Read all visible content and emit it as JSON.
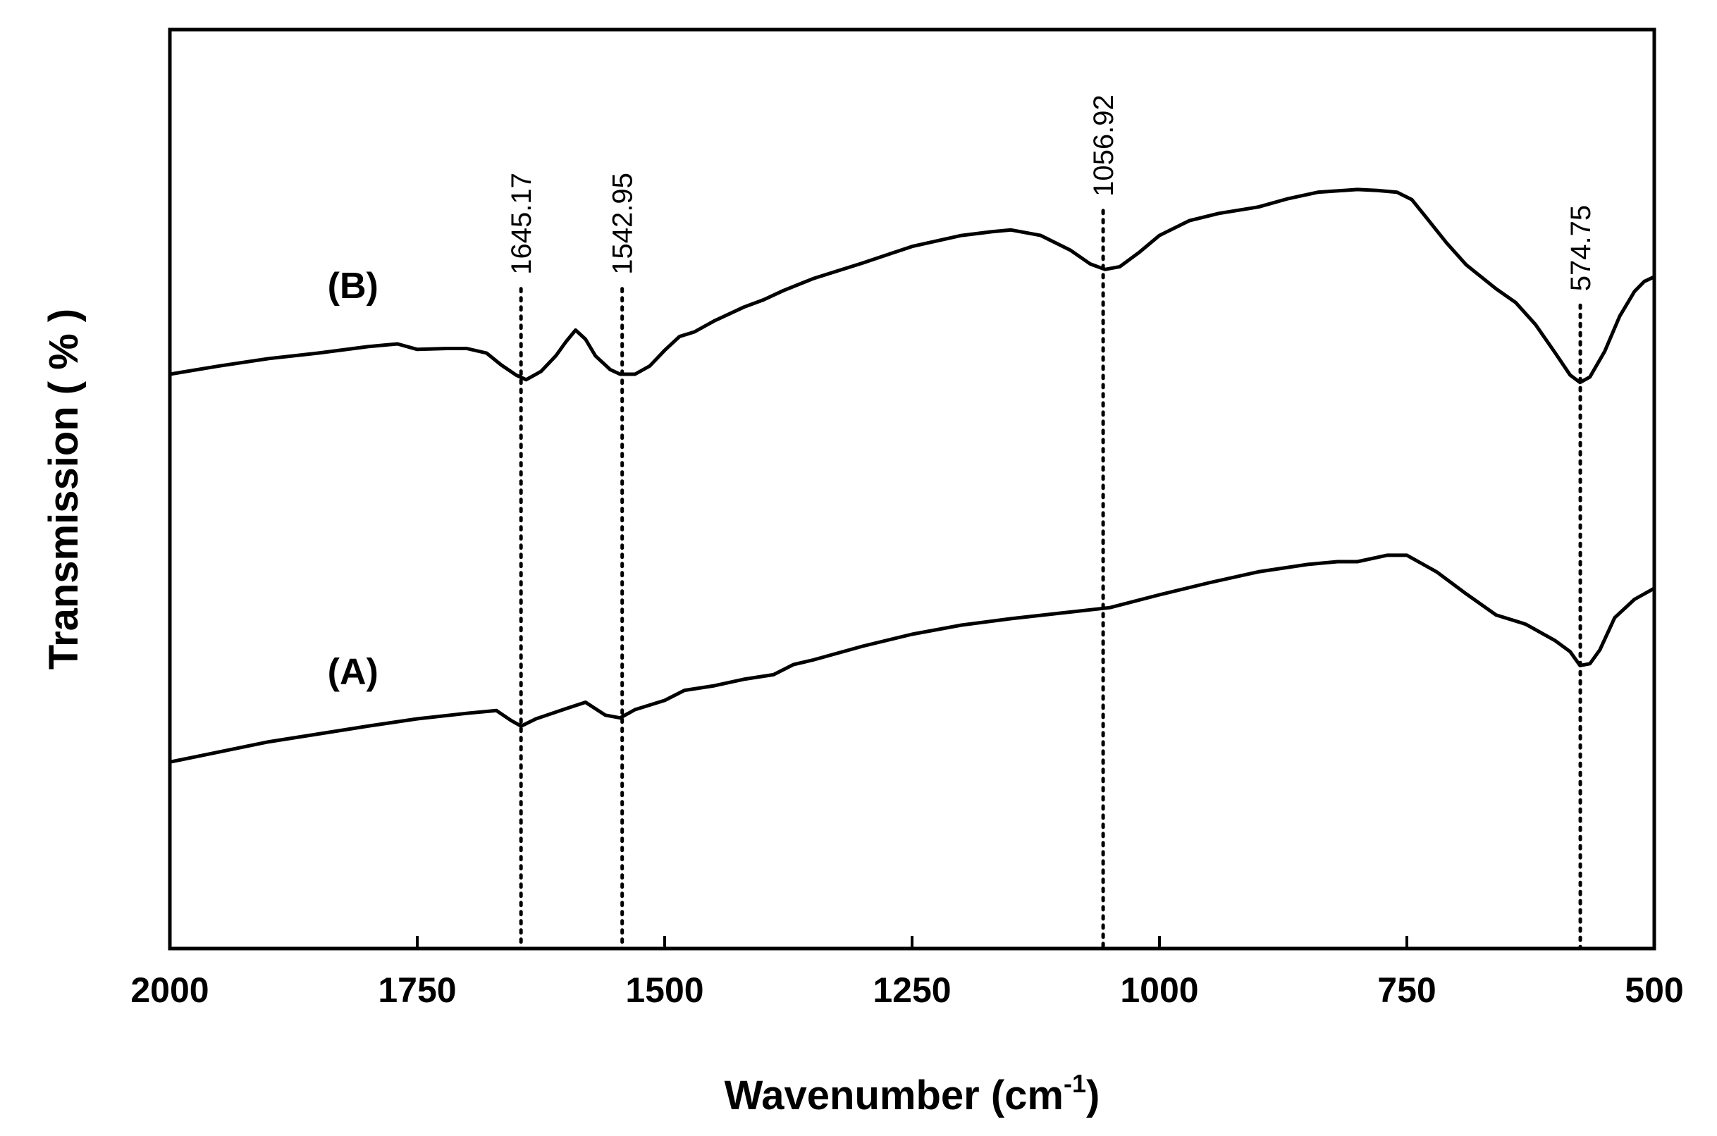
{
  "chart_data": {
    "type": "line",
    "title": "",
    "xlabel": "Wavenumber (cm",
    "xlabel_sup": "-1",
    "xlabel_close": ")",
    "ylabel": "Transmission ( % )",
    "xlim": [
      2000,
      500
    ],
    "ylim": [
      0,
      100
    ],
    "x_reversed": true,
    "xticks": [
      2000,
      1750,
      1500,
      1250,
      1000,
      750,
      500
    ],
    "xtick_labels": [
      "2000",
      "1750",
      "1500",
      "1250",
      "1000",
      "750",
      "500"
    ],
    "grid": false,
    "peaks": [
      {
        "x": 1645.17,
        "label": "1645.17",
        "y_top": 71.8
      },
      {
        "x": 1542.95,
        "label": "1542.95",
        "y_top": 71.8
      },
      {
        "x": 1056.92,
        "label": "1056.92",
        "y_top": 80.3
      },
      {
        "x": 574.75,
        "label": "574.75",
        "y_top": 70.0
      }
    ],
    "series": [
      {
        "name": "(A)",
        "label_x": 1815,
        "label_y": 28.8,
        "points": [
          [
            2000,
            20.3
          ],
          [
            1900,
            22.5
          ],
          [
            1800,
            24.2
          ],
          [
            1750,
            25.0
          ],
          [
            1700,
            25.6
          ],
          [
            1670,
            25.9
          ],
          [
            1655,
            24.8
          ],
          [
            1645,
            24.2
          ],
          [
            1630,
            25.0
          ],
          [
            1600,
            26.1
          ],
          [
            1580,
            26.8
          ],
          [
            1560,
            25.4
          ],
          [
            1545,
            25.1
          ],
          [
            1530,
            26.0
          ],
          [
            1500,
            27.0
          ],
          [
            1480,
            28.1
          ],
          [
            1450,
            28.6
          ],
          [
            1420,
            29.3
          ],
          [
            1390,
            29.8
          ],
          [
            1370,
            30.9
          ],
          [
            1350,
            31.4
          ],
          [
            1300,
            32.9
          ],
          [
            1250,
            34.2
          ],
          [
            1200,
            35.2
          ],
          [
            1150,
            35.9
          ],
          [
            1100,
            36.5
          ],
          [
            1050,
            37.1
          ],
          [
            1000,
            38.5
          ],
          [
            950,
            39.8
          ],
          [
            900,
            41.0
          ],
          [
            850,
            41.8
          ],
          [
            820,
            42.1
          ],
          [
            800,
            42.1
          ],
          [
            770,
            42.8
          ],
          [
            750,
            42.8
          ],
          [
            720,
            41.0
          ],
          [
            690,
            38.6
          ],
          [
            660,
            36.3
          ],
          [
            630,
            35.3
          ],
          [
            600,
            33.5
          ],
          [
            585,
            32.3
          ],
          [
            575,
            30.8
          ],
          [
            565,
            31.0
          ],
          [
            555,
            32.5
          ],
          [
            540,
            36.0
          ],
          [
            520,
            38.0
          ],
          [
            500,
            39.2
          ]
        ]
      },
      {
        "name": "(B)",
        "label_x": 1815,
        "label_y": 70.8,
        "points": [
          [
            2000,
            62.5
          ],
          [
            1950,
            63.4
          ],
          [
            1900,
            64.2
          ],
          [
            1850,
            64.8
          ],
          [
            1800,
            65.5
          ],
          [
            1770,
            65.8
          ],
          [
            1750,
            65.2
          ],
          [
            1720,
            65.3
          ],
          [
            1700,
            65.3
          ],
          [
            1680,
            64.8
          ],
          [
            1665,
            63.5
          ],
          [
            1650,
            62.4
          ],
          [
            1640,
            61.9
          ],
          [
            1625,
            62.8
          ],
          [
            1610,
            64.5
          ],
          [
            1600,
            66.0
          ],
          [
            1590,
            67.3
          ],
          [
            1580,
            66.3
          ],
          [
            1570,
            64.5
          ],
          [
            1555,
            63.0
          ],
          [
            1545,
            62.5
          ],
          [
            1530,
            62.5
          ],
          [
            1515,
            63.4
          ],
          [
            1500,
            65.1
          ],
          [
            1485,
            66.6
          ],
          [
            1470,
            67.1
          ],
          [
            1450,
            68.3
          ],
          [
            1420,
            69.8
          ],
          [
            1400,
            70.6
          ],
          [
            1380,
            71.6
          ],
          [
            1350,
            72.9
          ],
          [
            1300,
            74.6
          ],
          [
            1250,
            76.4
          ],
          [
            1200,
            77.6
          ],
          [
            1170,
            78.0
          ],
          [
            1150,
            78.2
          ],
          [
            1120,
            77.6
          ],
          [
            1090,
            76.0
          ],
          [
            1070,
            74.5
          ],
          [
            1055,
            73.9
          ],
          [
            1040,
            74.2
          ],
          [
            1020,
            75.8
          ],
          [
            1000,
            77.6
          ],
          [
            970,
            79.2
          ],
          [
            940,
            80.0
          ],
          [
            900,
            80.7
          ],
          [
            870,
            81.6
          ],
          [
            840,
            82.3
          ],
          [
            800,
            82.6
          ],
          [
            780,
            82.5
          ],
          [
            760,
            82.3
          ],
          [
            745,
            81.5
          ],
          [
            730,
            79.5
          ],
          [
            710,
            76.8
          ],
          [
            690,
            74.4
          ],
          [
            660,
            71.8
          ],
          [
            640,
            70.3
          ],
          [
            620,
            67.9
          ],
          [
            600,
            64.8
          ],
          [
            585,
            62.4
          ],
          [
            575,
            61.6
          ],
          [
            565,
            62.2
          ],
          [
            550,
            65.0
          ],
          [
            535,
            68.8
          ],
          [
            520,
            71.5
          ],
          [
            510,
            72.6
          ],
          [
            500,
            73.1
          ]
        ]
      }
    ]
  }
}
